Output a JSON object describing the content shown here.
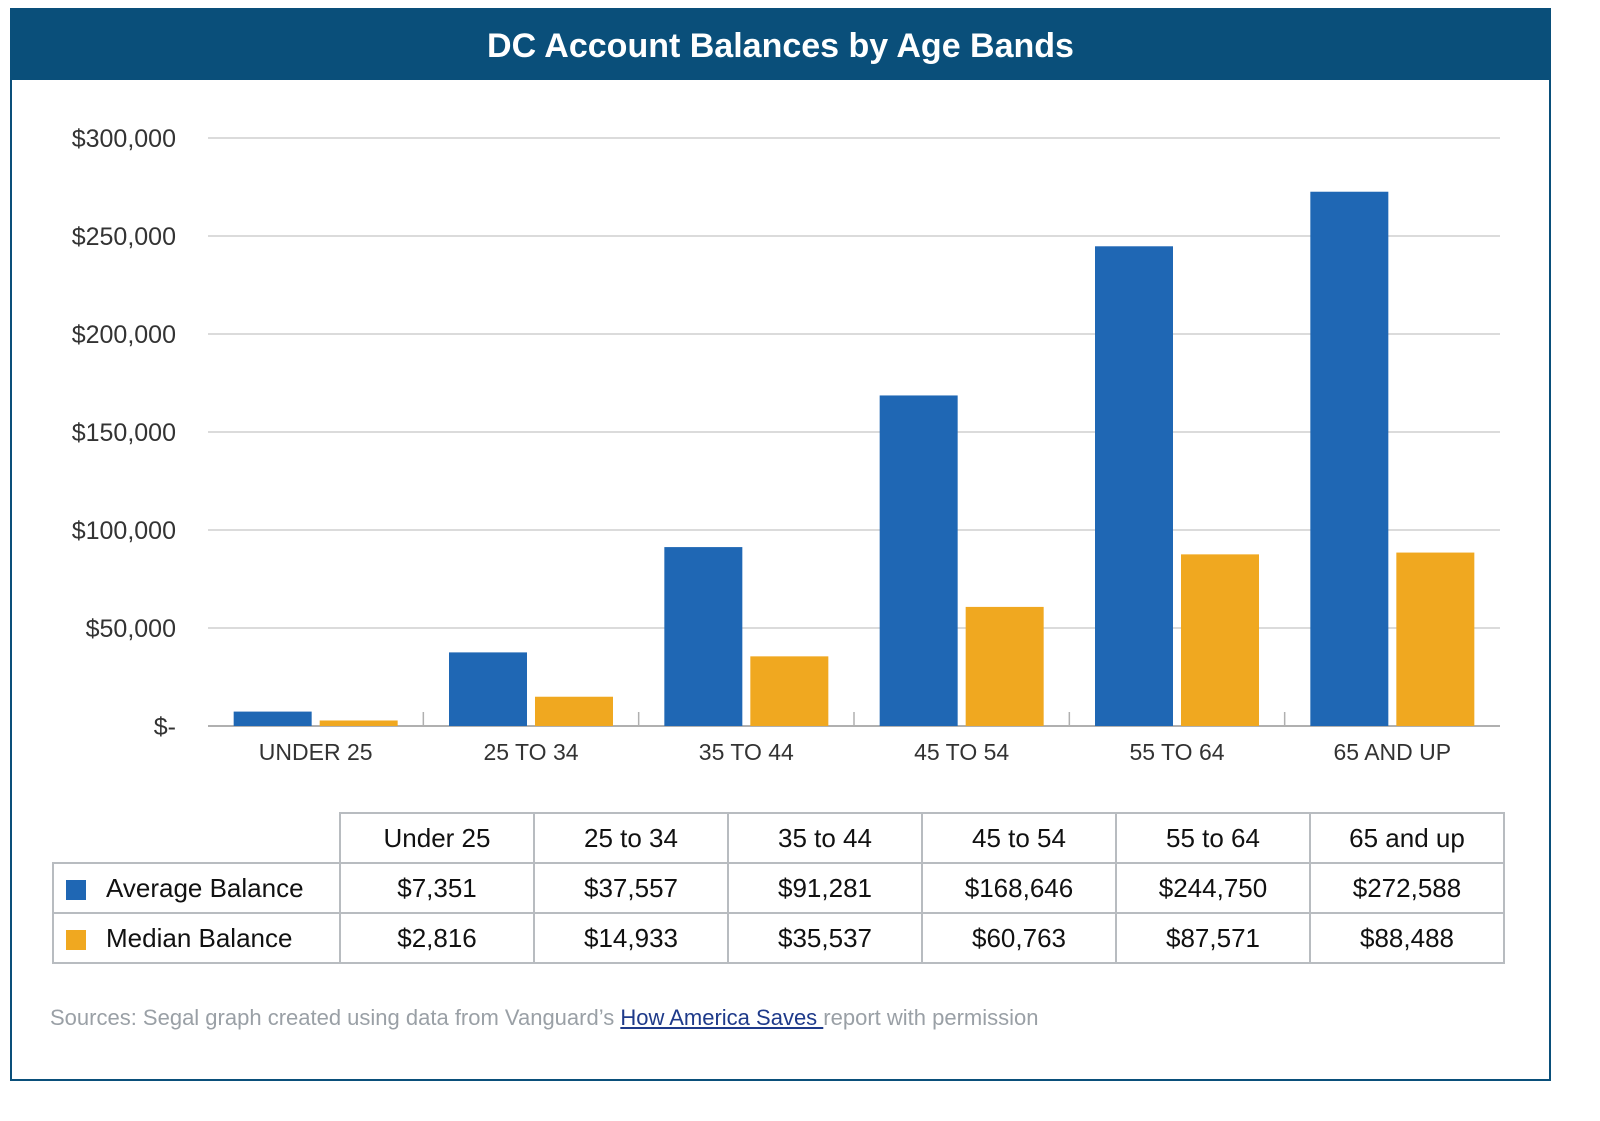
{
  "chart_data": {
    "type": "bar",
    "title": "DC Account Balances by Age Bands",
    "xlabel": "",
    "ylabel": "",
    "ylim": [
      0,
      300000
    ],
    "yticks": [
      0,
      50000,
      100000,
      150000,
      200000,
      250000,
      300000
    ],
    "ytick_labels": [
      "$-",
      "$50,000",
      "$100,000",
      "$150,000",
      "$200,000",
      "$250,000",
      "$300,000"
    ],
    "grid": true,
    "categories": [
      "UNDER 25",
      "25 TO 34",
      "35 TO 44",
      "45 TO 54",
      "55 TO 64",
      "65 AND UP"
    ],
    "series": [
      {
        "name": "Average Balance",
        "color": "#1f67b4",
        "values": [
          7351,
          37557,
          91281,
          168646,
          244750,
          272588
        ]
      },
      {
        "name": "Median Balance",
        "color": "#f0a820",
        "values": [
          2816,
          14933,
          35537,
          60763,
          87571,
          88488
        ]
      }
    ],
    "legend": "table-below"
  },
  "table": {
    "headers": [
      "Under 25",
      "25 to 34",
      "35 to 44",
      "45 to 54",
      "55 to 64",
      "65 and up"
    ],
    "rows": [
      {
        "label": "Average Balance",
        "color": "#1f67b4",
        "cells": [
          "$7,351",
          "$37,557",
          "$91,281",
          "$168,646",
          "$244,750",
          "$272,588"
        ]
      },
      {
        "label": "Median Balance",
        "color": "#f0a820",
        "cells": [
          "$2,816",
          "$14,933",
          "$35,537",
          "$60,763",
          "$87,571",
          "$88,488"
        ]
      }
    ]
  },
  "source": {
    "prefix": "Sources: Segal graph created using data from Vanguard’s ",
    "link_text": "How America Saves ",
    "suffix": "report with permission"
  }
}
